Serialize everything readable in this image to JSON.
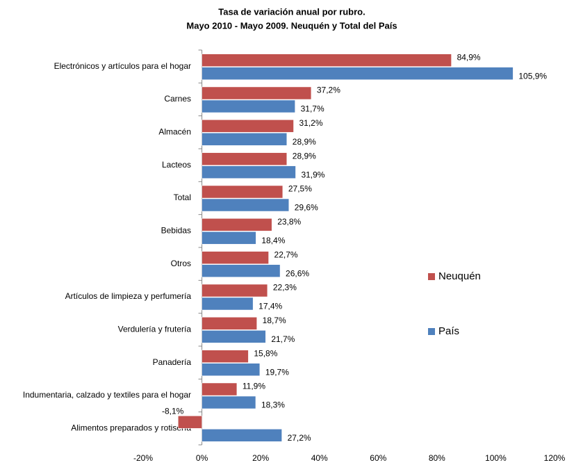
{
  "chart_data": {
    "type": "barh",
    "title": "Tasa de variación anual  por rubro.",
    "subtitle": "Mayo 2010 - Mayo 2009. Neuquén y Total del País",
    "categories": [
      "Electrónicos y artículos para el hogar",
      "Carnes",
      "Almacén",
      "Lacteos",
      "Total",
      "Bebidas",
      "Otros",
      "Artículos de limpieza y perfumería",
      "Verdulería y frutería",
      "Panadería",
      "Indumentaria, calzado y textiles para el hogar",
      "Alimentos preparados y rotisería"
    ],
    "series": [
      {
        "name": "Neuquén",
        "color": "#c0504d",
        "values": [
          84.9,
          37.2,
          31.2,
          28.9,
          27.5,
          23.8,
          22.7,
          22.3,
          18.7,
          15.8,
          11.9,
          -8.1
        ],
        "value_labels": [
          "84,9%",
          "37,2%",
          "31,2%",
          "28,9%",
          "27,5%",
          "23,8%",
          "22,7%",
          "22,3%",
          "18,7%",
          "15,8%",
          "11,9%",
          "-8,1%"
        ]
      },
      {
        "name": "País",
        "color": "#4f81bd",
        "values": [
          105.9,
          31.7,
          28.9,
          31.9,
          29.6,
          18.4,
          26.6,
          17.4,
          21.7,
          19.7,
          18.3,
          27.2
        ],
        "value_labels": [
          "105,9%",
          "31,7%",
          "28,9%",
          "31,9%",
          "29,6%",
          "18,4%",
          "26,6%",
          "17,4%",
          "21,7%",
          "19,7%",
          "18,3%",
          "27,2%"
        ]
      }
    ],
    "xlim": [
      -20,
      120
    ],
    "xticks": [
      {
        "value": -20,
        "label": "-20%"
      },
      {
        "value": 0,
        "label": "0%"
      },
      {
        "value": 20,
        "label": "20%"
      },
      {
        "value": 40,
        "label": "40%"
      },
      {
        "value": 60,
        "label": "60%"
      },
      {
        "value": 80,
        "label": "80%"
      },
      {
        "value": 100,
        "label": "100%"
      },
      {
        "value": 120,
        "label": "120%"
      }
    ],
    "legend": "right"
  }
}
